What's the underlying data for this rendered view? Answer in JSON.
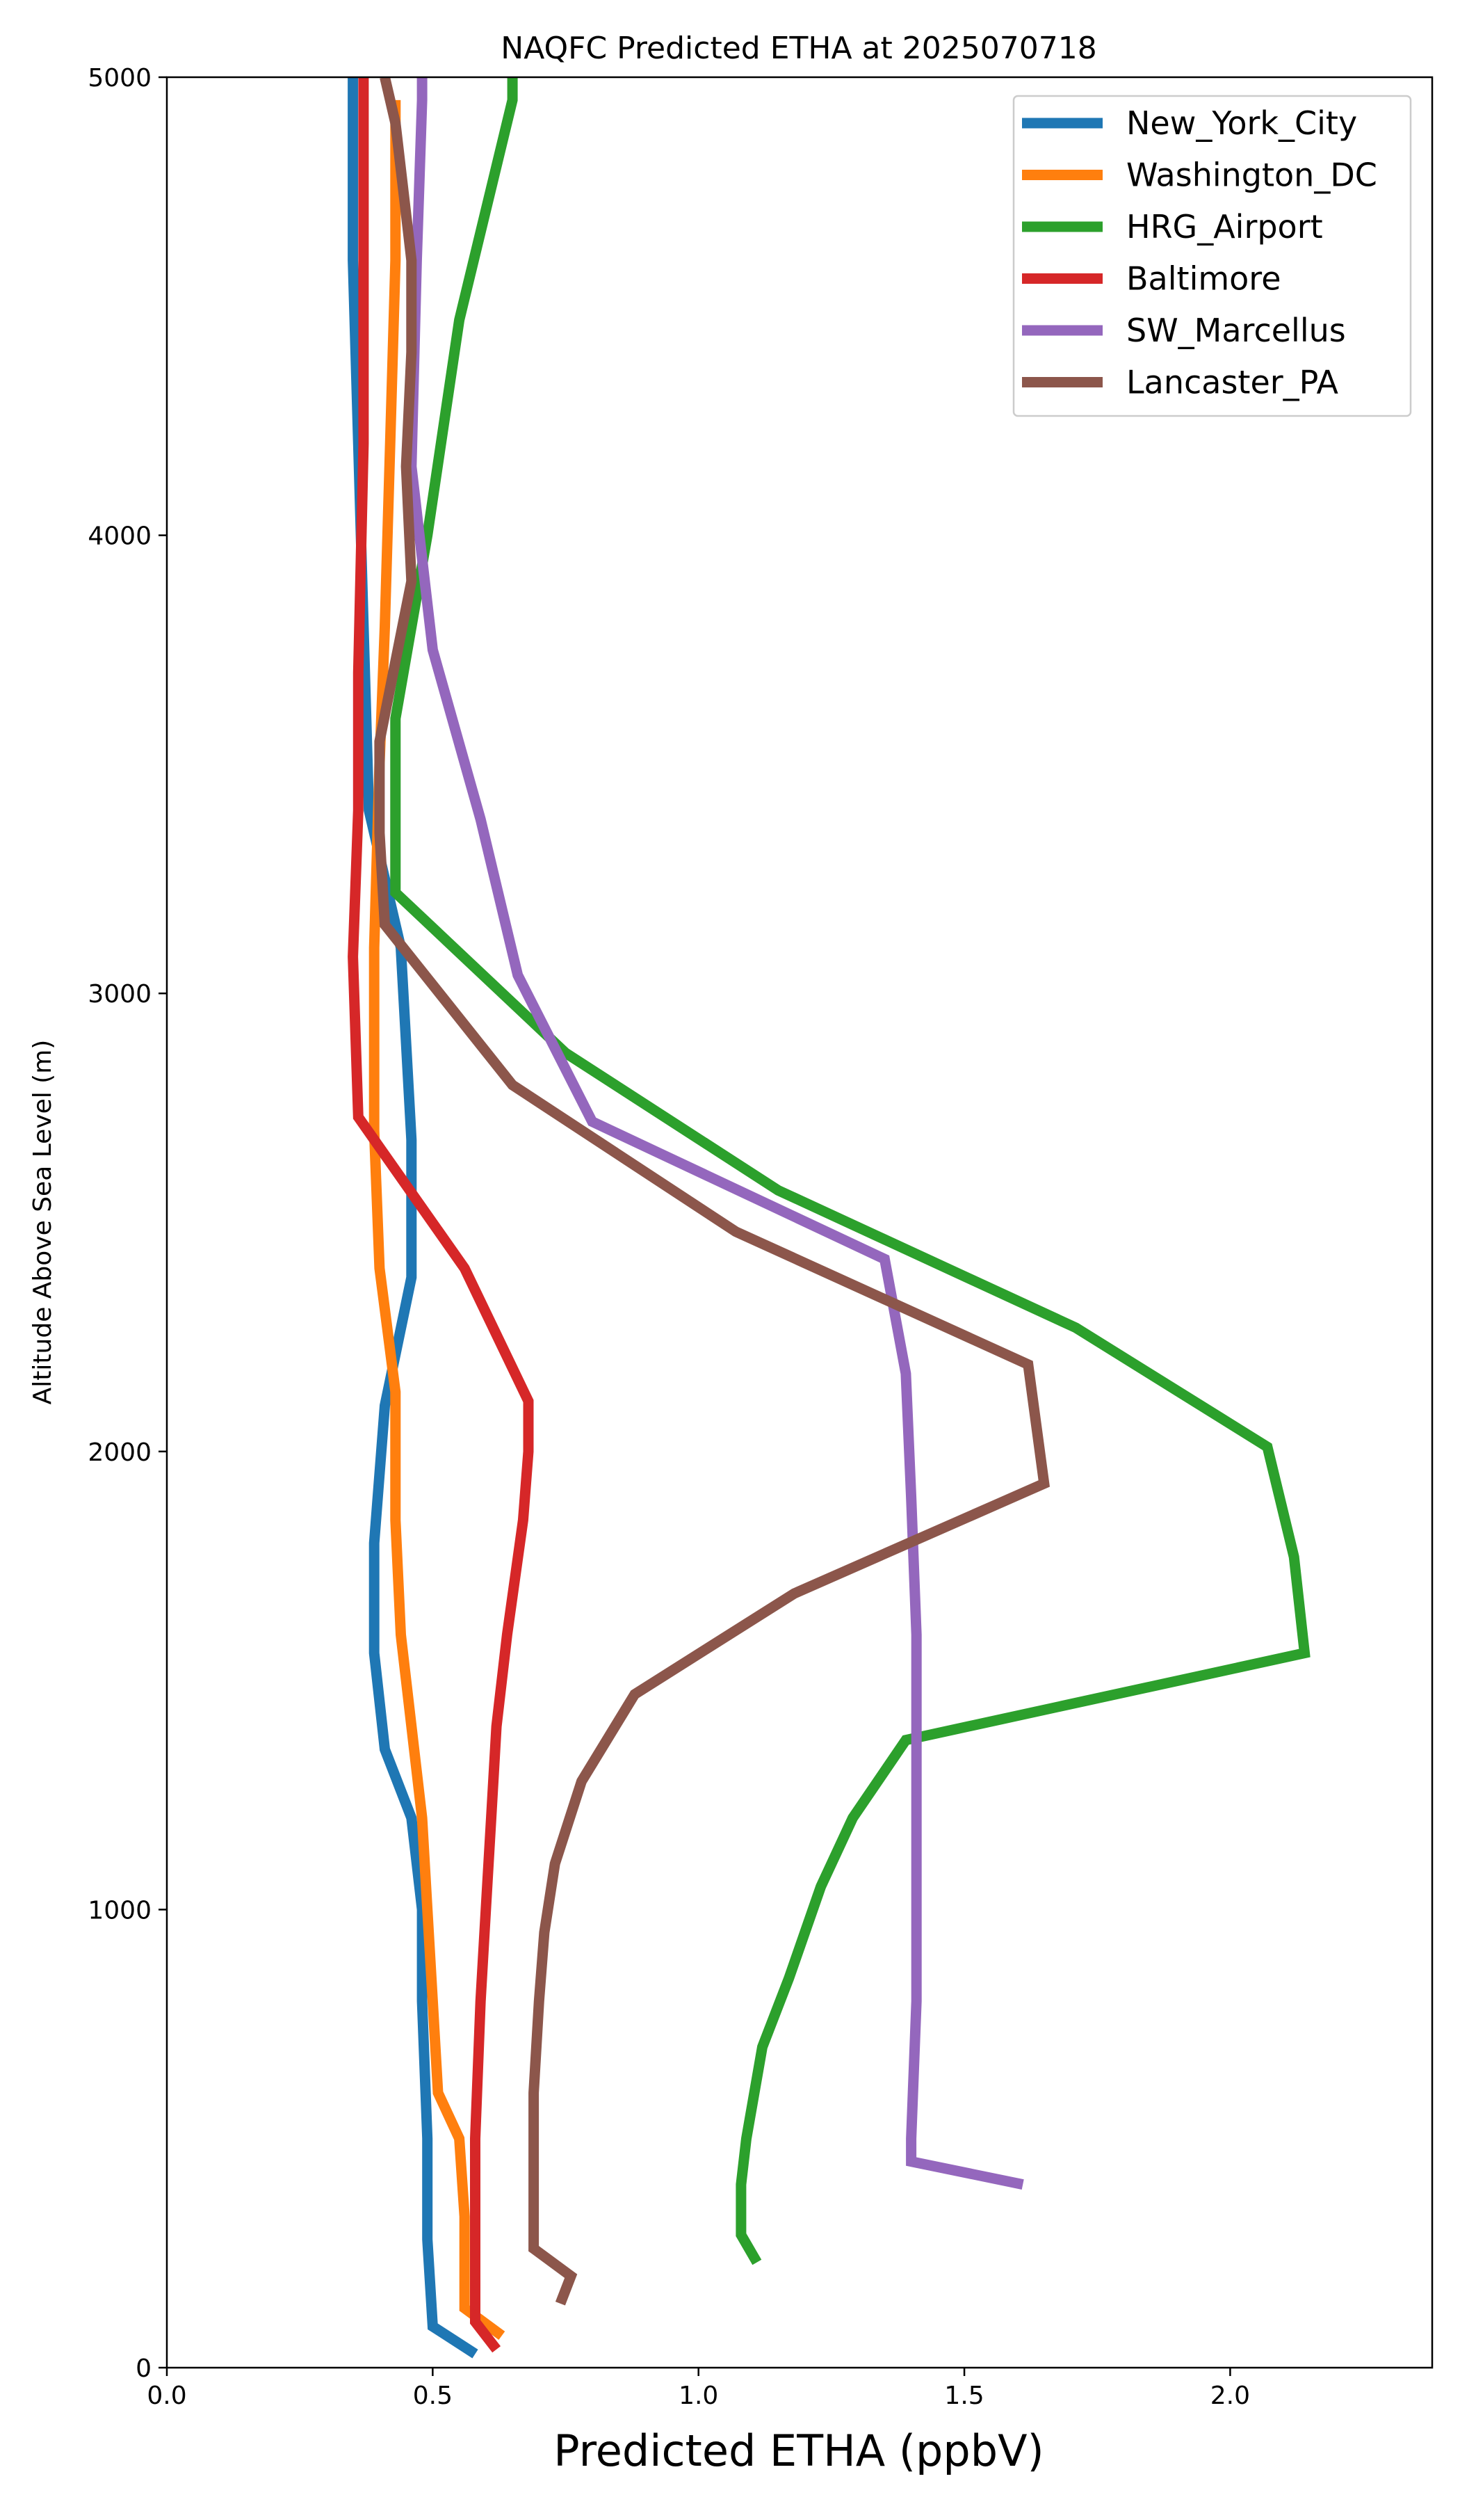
{
  "chart_data": {
    "type": "line",
    "title": "NAQFC Predicted ETHA at 2025070718",
    "xlabel": "Predicted ETHA (ppbV)",
    "ylabel": "Altitude Above Sea Level (m)",
    "xlim": [
      0.0,
      2.38
    ],
    "ylim": [
      0,
      5000
    ],
    "xticks": [
      0.0,
      0.5,
      1.0,
      1.5,
      2.0
    ],
    "xtick_labels": [
      "0.0",
      "0.5",
      "1.0",
      "1.5",
      "2.0"
    ],
    "yticks": [
      0,
      1000,
      2000,
      3000,
      4000,
      5000
    ],
    "ytick_labels": [
      "0",
      "1000",
      "2000",
      "3000",
      "4000",
      "5000"
    ],
    "grid": false,
    "legend_position": "upper right",
    "series": [
      {
        "name": "New_York_City",
        "color": "#1f77b4",
        "x": [
          0.58,
          0.5,
          0.49,
          0.49,
          0.48,
          0.48,
          0.46,
          0.41,
          0.39,
          0.39,
          0.41,
          0.46,
          0.46,
          0.44,
          0.38,
          0.37,
          0.36,
          0.35,
          0.35
        ],
        "y": [
          30,
          90,
          280,
          500,
          800,
          1000,
          1200,
          1350,
          1560,
          1800,
          2100,
          2380,
          2680,
          3100,
          3400,
          3800,
          4200,
          4600,
          5000
        ]
      },
      {
        "name": "Washington_DC",
        "color": "#ff7f0e",
        "x": [
          0.63,
          0.56,
          0.56,
          0.56,
          0.55,
          0.51,
          0.5,
          0.49,
          0.48,
          0.44,
          0.43,
          0.43,
          0.4,
          0.39,
          0.39,
          0.4,
          0.41,
          0.42,
          0.43,
          0.43
        ],
        "y": [
          70,
          130,
          280,
          330,
          500,
          600,
          800,
          1000,
          1200,
          1600,
          1850,
          2130,
          2400,
          2700,
          3100,
          3500,
          3800,
          4200,
          4600,
          4950
        ]
      },
      {
        "name": "HRG_Airport",
        "color": "#2ca02c",
        "x": [
          1.11,
          1.08,
          1.08,
          1.09,
          1.12,
          1.17,
          1.23,
          1.29,
          1.39,
          2.14,
          2.12,
          2.07,
          1.71,
          1.15,
          0.75,
          0.43,
          0.43,
          0.43,
          0.49,
          0.55,
          0.65,
          0.65
        ],
        "y": [
          230,
          290,
          400,
          500,
          700,
          850,
          1050,
          1200,
          1370,
          1560,
          1770,
          2010,
          2270,
          2570,
          2870,
          3220,
          3400,
          3600,
          4000,
          4470,
          4950,
          5000
        ]
      },
      {
        "name": "Baltimore",
        "color": "#d62728",
        "x": [
          0.62,
          0.58,
          0.58,
          0.58,
          0.59,
          0.6,
          0.61,
          0.62,
          0.64,
          0.67,
          0.68,
          0.68,
          0.56,
          0.36,
          0.35,
          0.36,
          0.36,
          0.37,
          0.37,
          0.37
        ],
        "y": [
          40,
          100,
          200,
          500,
          800,
          1000,
          1200,
          1400,
          1600,
          1850,
          2000,
          2110,
          2400,
          2730,
          3080,
          3400,
          3700,
          4200,
          4600,
          5000
        ]
      },
      {
        "name": "SW_Marcellus",
        "color": "#9467bd",
        "x": [
          1.61,
          1.4,
          1.4,
          1.41,
          1.41,
          1.41,
          1.41,
          1.41,
          1.4,
          1.39,
          1.35,
          0.8,
          0.66,
          0.59,
          0.5,
          0.46,
          0.47,
          0.48,
          0.48
        ],
        "y": [
          400,
          450,
          500,
          800,
          1000,
          1200,
          1400,
          1600,
          1900,
          2170,
          2420,
          2720,
          3040,
          3380,
          3750,
          4150,
          4600,
          4950,
          5000
        ]
      },
      {
        "name": "Lancaster_PA",
        "color": "#8c564b",
        "x": [
          0.74,
          0.76,
          0.69,
          0.69,
          0.69,
          0.7,
          0.71,
          0.73,
          0.78,
          0.88,
          1.18,
          1.65,
          1.62,
          1.07,
          0.65,
          0.41,
          0.4,
          0.4,
          0.46,
          0.45,
          0.46,
          0.46,
          0.43,
          0.41
        ],
        "y": [
          140,
          200,
          260,
          400,
          600,
          800,
          950,
          1100,
          1280,
          1470,
          1690,
          1930,
          2190,
          2480,
          2800,
          3150,
          3350,
          3550,
          3900,
          4150,
          4400,
          4600,
          4900,
          5000
        ]
      }
    ]
  }
}
